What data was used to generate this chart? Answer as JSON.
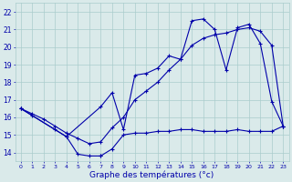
{
  "xlabel": "Graphe des températures (°c)",
  "background_color": "#daeaea",
  "grid_color": "#aacccc",
  "line_color": "#0000aa",
  "ylim": [
    13.5,
    22.5
  ],
  "yticks": [
    14,
    15,
    16,
    17,
    18,
    19,
    20,
    21,
    22
  ],
  "ytick_labels": [
    "14",
    "15",
    "16",
    "17",
    "18",
    "19",
    "20",
    "21",
    "22"
  ],
  "xlim": [
    -0.5,
    23.5
  ],
  "xticks": [
    0,
    1,
    2,
    3,
    4,
    5,
    6,
    7,
    8,
    9,
    10,
    11,
    12,
    13,
    14,
    15,
    16,
    17,
    18,
    19,
    20,
    21,
    22,
    23
  ],
  "s1_x": [
    0,
    1,
    3,
    4,
    5,
    6,
    7
  ],
  "s1_y": [
    16.5,
    16.1,
    15.3,
    14.9,
    13.9,
    13.8,
    13.8
  ],
  "s2_x": [
    0,
    4,
    7,
    8,
    9,
    10,
    11,
    12,
    13,
    14,
    15,
    16,
    17,
    18,
    19,
    20,
    21,
    22,
    23
  ],
  "s2_y": [
    16.5,
    14.9,
    16.6,
    17.4,
    15.3,
    18.4,
    18.5,
    18.8,
    19.5,
    19.3,
    21.5,
    21.6,
    21.0,
    18.7,
    21.1,
    21.3,
    20.2,
    16.9,
    15.5
  ],
  "s3_x": [
    0,
    1,
    2,
    3,
    4,
    5,
    6,
    7,
    8,
    9,
    10,
    11,
    12,
    13,
    14,
    15,
    16,
    17,
    18,
    19,
    20,
    21,
    22,
    23
  ],
  "s3_y": [
    16.5,
    16.2,
    15.9,
    15.5,
    15.1,
    14.8,
    14.5,
    14.6,
    15.4,
    16.0,
    17.0,
    17.5,
    18.0,
    18.7,
    19.3,
    20.1,
    20.5,
    20.7,
    20.8,
    21.0,
    21.1,
    20.9,
    20.1,
    15.5
  ],
  "s4_x": [
    7,
    8,
    9,
    10,
    11,
    12,
    13,
    14,
    15,
    16,
    17,
    18,
    19,
    20,
    21,
    22,
    23
  ],
  "s4_y": [
    13.8,
    14.2,
    15.0,
    15.1,
    15.1,
    15.2,
    15.2,
    15.3,
    15.3,
    15.2,
    15.2,
    15.2,
    15.3,
    15.2,
    15.2,
    15.2,
    15.5
  ]
}
